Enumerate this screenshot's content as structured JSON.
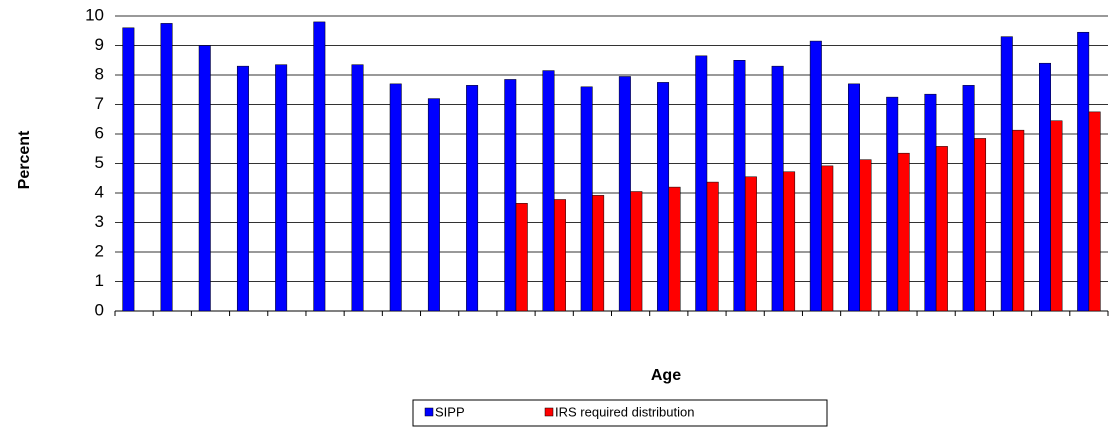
{
  "chart_data": {
    "type": "bar",
    "x_label": "Age",
    "y_label": "Percent",
    "categories": [
      null,
      null,
      null,
      null,
      null,
      null,
      null,
      null,
      null,
      null,
      null,
      null,
      null,
      null,
      null,
      null,
      null,
      null,
      null,
      null,
      null,
      null,
      null,
      null,
      null,
      null
    ],
    "series": [
      {
        "name": "SIPP",
        "color": "#0000ff",
        "values": [
          9.6,
          9.75,
          9.0,
          8.3,
          8.35,
          9.8,
          8.35,
          7.7,
          7.2,
          7.65,
          7.85,
          8.15,
          7.6,
          7.95,
          7.75,
          8.65,
          8.5,
          8.3,
          9.15,
          7.7,
          7.25,
          7.35,
          7.65,
          9.3,
          8.4,
          9.45
        ]
      },
      {
        "name": "IRS required distribution",
        "color": "#ff0000",
        "values": [
          null,
          null,
          null,
          null,
          null,
          null,
          null,
          null,
          null,
          null,
          3.65,
          3.78,
          3.92,
          4.05,
          4.2,
          4.37,
          4.55,
          4.72,
          4.92,
          5.13,
          5.35,
          5.58,
          5.85,
          6.13,
          6.45,
          6.75
        ]
      }
    ],
    "ylim": [
      0,
      10
    ],
    "yticks": [
      0,
      1,
      2,
      3,
      4,
      5,
      6,
      7,
      8,
      9,
      10
    ],
    "grid": true,
    "legend": "bottom"
  }
}
